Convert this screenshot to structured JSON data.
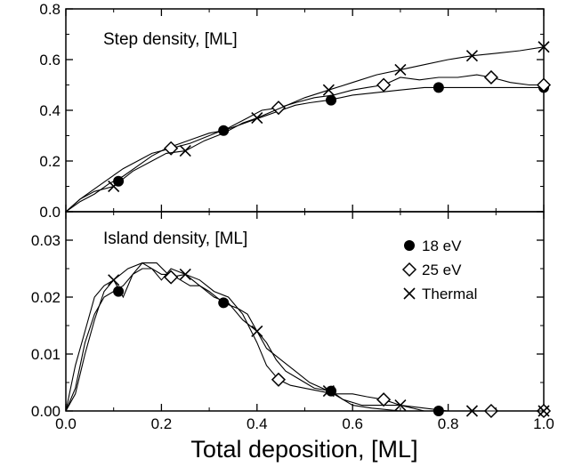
{
  "chart_data": [
    {
      "type": "line",
      "title": "Step density, [ML]",
      "xlabel": "",
      "ylabel": "",
      "xlim": [
        0.0,
        1.0
      ],
      "ylim": [
        0.0,
        0.8
      ],
      "x_ticks": [
        "0.0",
        "0.2",
        "0.4",
        "0.6",
        "0.8",
        "1.0"
      ],
      "y_ticks": [
        "0.0",
        "0.2",
        "0.4",
        "0.6",
        "0.8"
      ],
      "grid": false,
      "series": [
        {
          "name": "18 eV",
          "marker": "filled-circle",
          "line": [
            [
              0,
              0
            ],
            [
              0.03,
              0.04
            ],
            [
              0.06,
              0.07
            ],
            [
              0.09,
              0.11
            ],
            [
              0.12,
              0.14
            ],
            [
              0.15,
              0.18
            ],
            [
              0.18,
              0.22
            ],
            [
              0.21,
              0.25
            ],
            [
              0.24,
              0.27
            ],
            [
              0.27,
              0.29
            ],
            [
              0.3,
              0.31
            ],
            [
              0.33,
              0.32
            ],
            [
              0.36,
              0.34
            ],
            [
              0.39,
              0.36
            ],
            [
              0.42,
              0.38
            ],
            [
              0.45,
              0.4
            ],
            [
              0.48,
              0.42
            ],
            [
              0.51,
              0.43
            ],
            [
              0.55,
              0.44
            ],
            [
              0.6,
              0.46
            ],
            [
              0.65,
              0.47
            ],
            [
              0.7,
              0.48
            ],
            [
              0.75,
              0.49
            ],
            [
              0.78,
              0.49
            ],
            [
              0.85,
              0.49
            ],
            [
              0.9,
              0.49
            ],
            [
              0.95,
              0.49
            ],
            [
              1.0,
              0.49
            ]
          ],
          "markers": [
            [
              0.11,
              0.12
            ],
            [
              0.33,
              0.32
            ],
            [
              0.555,
              0.44
            ],
            [
              0.78,
              0.49
            ],
            [
              1.0,
              0.49
            ]
          ]
        },
        {
          "name": "25 eV",
          "marker": "open-diamond",
          "line": [
            [
              0,
              0
            ],
            [
              0.03,
              0.05
            ],
            [
              0.06,
              0.09
            ],
            [
              0.09,
              0.13
            ],
            [
              0.12,
              0.17
            ],
            [
              0.15,
              0.2
            ],
            [
              0.18,
              0.23
            ],
            [
              0.22,
              0.25
            ],
            [
              0.26,
              0.27
            ],
            [
              0.3,
              0.3
            ],
            [
              0.34,
              0.33
            ],
            [
              0.38,
              0.37
            ],
            [
              0.41,
              0.4
            ],
            [
              0.445,
              0.41
            ],
            [
              0.48,
              0.43
            ],
            [
              0.52,
              0.45
            ],
            [
              0.56,
              0.46
            ],
            [
              0.6,
              0.48
            ],
            [
              0.63,
              0.49
            ],
            [
              0.665,
              0.5
            ],
            [
              0.7,
              0.53
            ],
            [
              0.74,
              0.52
            ],
            [
              0.78,
              0.53
            ],
            [
              0.82,
              0.53
            ],
            [
              0.86,
              0.54
            ],
            [
              0.89,
              0.53
            ],
            [
              0.93,
              0.51
            ],
            [
              0.97,
              0.5
            ],
            [
              1.0,
              0.5
            ]
          ],
          "markers": [
            [
              0.22,
              0.25
            ],
            [
              0.445,
              0.41
            ],
            [
              0.665,
              0.5
            ],
            [
              0.89,
              0.53
            ],
            [
              1.0,
              0.5
            ]
          ]
        },
        {
          "name": "Thermal",
          "marker": "x",
          "line": [
            [
              0,
              0
            ],
            [
              0.03,
              0.05
            ],
            [
              0.06,
              0.08
            ],
            [
              0.1,
              0.1
            ],
            [
              0.14,
              0.16
            ],
            [
              0.18,
              0.2
            ],
            [
              0.21,
              0.23
            ],
            [
              0.25,
              0.24
            ],
            [
              0.29,
              0.28
            ],
            [
              0.33,
              0.31
            ],
            [
              0.37,
              0.35
            ],
            [
              0.4,
              0.37
            ],
            [
              0.45,
              0.41
            ],
            [
              0.5,
              0.45
            ],
            [
              0.55,
              0.48
            ],
            [
              0.6,
              0.51
            ],
            [
              0.65,
              0.54
            ],
            [
              0.7,
              0.56
            ],
            [
              0.75,
              0.58
            ],
            [
              0.8,
              0.6
            ],
            [
              0.85,
              0.615
            ],
            [
              0.9,
              0.625
            ],
            [
              0.95,
              0.635
            ],
            [
              1.0,
              0.65
            ]
          ],
          "markers": [
            [
              0.1,
              0.1
            ],
            [
              0.25,
              0.24
            ],
            [
              0.4,
              0.37
            ],
            [
              0.55,
              0.48
            ],
            [
              0.7,
              0.56
            ],
            [
              0.85,
              0.615
            ],
            [
              1.0,
              0.65
            ]
          ]
        }
      ]
    },
    {
      "type": "line",
      "title": "Island density, [ML]",
      "xlabel": "Total deposition, [ML]",
      "ylabel": "",
      "xlim": [
        0.0,
        1.0
      ],
      "ylim": [
        0.0,
        0.035
      ],
      "x_ticks": [
        "0.0",
        "0.2",
        "0.4",
        "0.6",
        "0.8",
        "1.0"
      ],
      "y_ticks": [
        "0.00",
        "0.01",
        "0.02",
        "0.03"
      ],
      "grid": false,
      "legend_position": "top-right",
      "series": [
        {
          "name": "18 eV",
          "marker": "filled-circle",
          "line": [
            [
              0,
              0
            ],
            [
              0.02,
              0.004
            ],
            [
              0.04,
              0.012
            ],
            [
              0.06,
              0.017
            ],
            [
              0.08,
              0.02
            ],
            [
              0.1,
              0.021
            ],
            [
              0.12,
              0.022
            ],
            [
              0.14,
              0.024
            ],
            [
              0.16,
              0.025
            ],
            [
              0.18,
              0.025
            ],
            [
              0.2,
              0.024
            ],
            [
              0.22,
              0.024
            ],
            [
              0.24,
              0.023
            ],
            [
              0.26,
              0.022
            ],
            [
              0.28,
              0.022
            ],
            [
              0.3,
              0.021
            ],
            [
              0.33,
              0.019
            ],
            [
              0.36,
              0.018
            ],
            [
              0.38,
              0.017
            ],
            [
              0.4,
              0.014
            ],
            [
              0.42,
              0.012
            ],
            [
              0.44,
              0.009
            ],
            [
              0.46,
              0.007
            ],
            [
              0.48,
              0.006
            ],
            [
              0.5,
              0.005
            ],
            [
              0.52,
              0.004
            ],
            [
              0.555,
              0.0035
            ],
            [
              0.58,
              0.002
            ],
            [
              0.6,
              0.001
            ],
            [
              0.64,
              0.0005
            ],
            [
              0.7,
              0
            ],
            [
              0.78,
              0
            ],
            [
              0.9,
              0
            ],
            [
              1.0,
              0
            ]
          ],
          "markers": [
            [
              0.11,
              0.021
            ],
            [
              0.33,
              0.019
            ],
            [
              0.555,
              0.0035
            ],
            [
              0.78,
              0.0
            ],
            [
              1.0,
              0.0
            ]
          ]
        },
        {
          "name": "25 eV",
          "marker": "open-diamond",
          "line": [
            [
              0,
              0
            ],
            [
              0.02,
              0.008
            ],
            [
              0.04,
              0.014
            ],
            [
              0.06,
              0.02
            ],
            [
              0.08,
              0.022
            ],
            [
              0.1,
              0.023
            ],
            [
              0.13,
              0.025
            ],
            [
              0.16,
              0.026
            ],
            [
              0.19,
              0.026
            ],
            [
              0.22,
              0.0235
            ],
            [
              0.25,
              0.024
            ],
            [
              0.28,
              0.023
            ],
            [
              0.31,
              0.021
            ],
            [
              0.34,
              0.02
            ],
            [
              0.37,
              0.017
            ],
            [
              0.4,
              0.012
            ],
            [
              0.42,
              0.008
            ],
            [
              0.445,
              0.0055
            ],
            [
              0.47,
              0.0045
            ],
            [
              0.5,
              0.004
            ],
            [
              0.53,
              0.0035
            ],
            [
              0.56,
              0.003
            ],
            [
              0.6,
              0.003
            ],
            [
              0.63,
              0.0025
            ],
            [
              0.665,
              0.002
            ],
            [
              0.7,
              0.001
            ],
            [
              0.75,
              0.0005
            ],
            [
              0.8,
              0
            ],
            [
              0.89,
              0
            ],
            [
              1.0,
              0
            ]
          ],
          "markers": [
            [
              0.22,
              0.0235
            ],
            [
              0.445,
              0.0055
            ],
            [
              0.665,
              0.002
            ],
            [
              0.89,
              0.0
            ],
            [
              1.0,
              0.0
            ]
          ]
        },
        {
          "name": "Thermal",
          "marker": "x",
          "line": [
            [
              0,
              0
            ],
            [
              0.02,
              0.003
            ],
            [
              0.04,
              0.01
            ],
            [
              0.06,
              0.016
            ],
            [
              0.08,
              0.021
            ],
            [
              0.1,
              0.023
            ],
            [
              0.12,
              0.02
            ],
            [
              0.14,
              0.024
            ],
            [
              0.16,
              0.026
            ],
            [
              0.18,
              0.025
            ],
            [
              0.2,
              0.023
            ],
            [
              0.22,
              0.025
            ],
            [
              0.25,
              0.024
            ],
            [
              0.28,
              0.022
            ],
            [
              0.31,
              0.02
            ],
            [
              0.34,
              0.019
            ],
            [
              0.37,
              0.016
            ],
            [
              0.4,
              0.014
            ],
            [
              0.42,
              0.011
            ],
            [
              0.45,
              0.009
            ],
            [
              0.48,
              0.007
            ],
            [
              0.51,
              0.005
            ],
            [
              0.55,
              0.0035
            ],
            [
              0.58,
              0.002
            ],
            [
              0.62,
              0.001
            ],
            [
              0.66,
              0.001
            ],
            [
              0.7,
              0.001
            ],
            [
              0.75,
              0
            ],
            [
              0.85,
              0
            ],
            [
              1.0,
              0
            ]
          ],
          "markers": [
            [
              0.1,
              0.023
            ],
            [
              0.25,
              0.024
            ],
            [
              0.4,
              0.014
            ],
            [
              0.55,
              0.0035
            ],
            [
              0.7,
              0.001
            ],
            [
              0.85,
              0.0
            ],
            [
              1.0,
              0.0
            ]
          ]
        }
      ]
    }
  ]
}
